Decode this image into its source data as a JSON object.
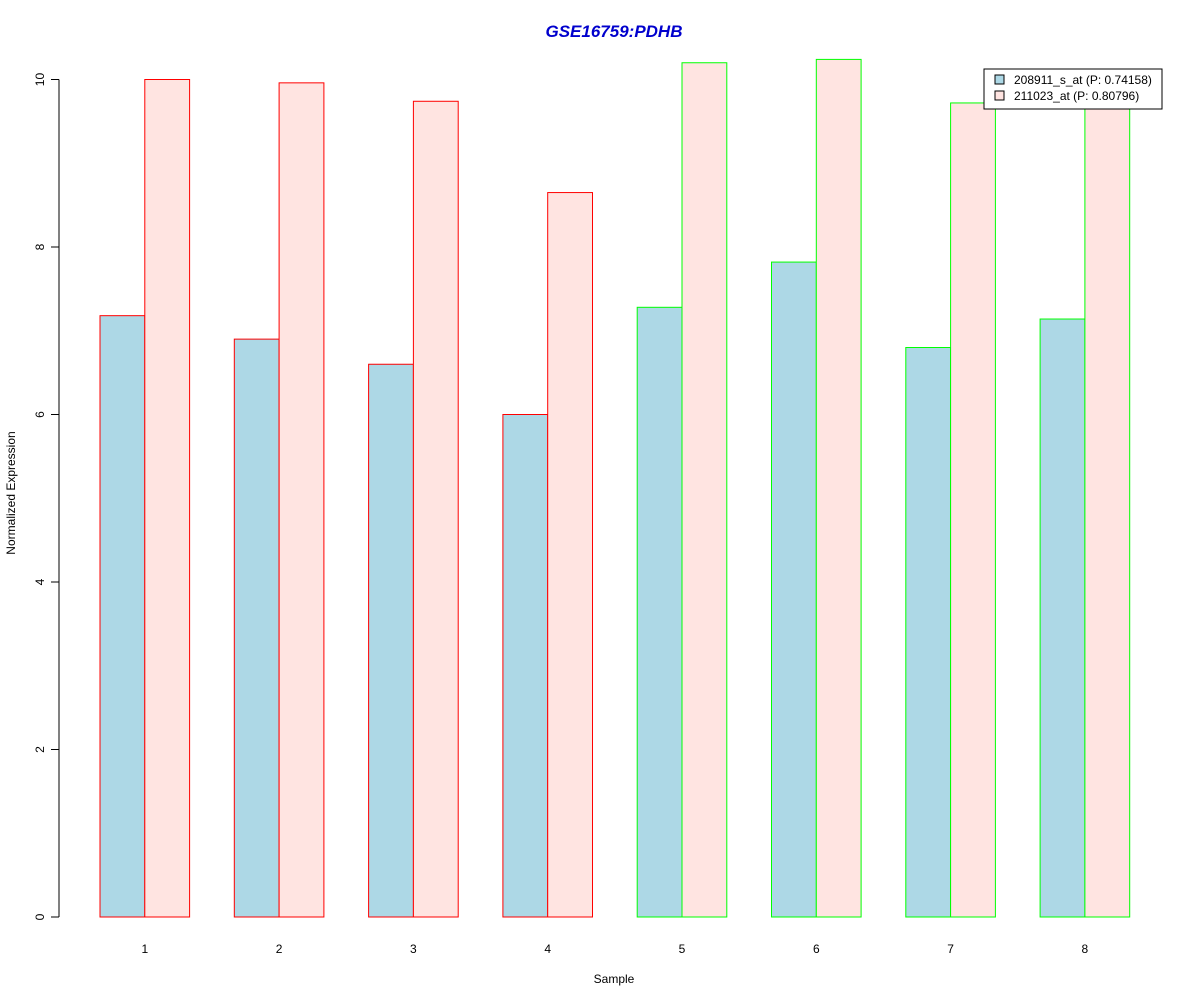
{
  "chart_data": {
    "type": "bar",
    "title": "GSE16759:PDHB",
    "xlabel": "Sample",
    "ylabel": "Normalized Expression",
    "categories": [
      "1",
      "2",
      "3",
      "4",
      "5",
      "6",
      "7",
      "8"
    ],
    "yticks": [
      "0",
      "2",
      "4",
      "6",
      "8",
      "10"
    ],
    "ylim": [
      0,
      10.2
    ],
    "series": [
      {
        "name": "208911_s_at (P: 0.74158)",
        "fill": "#add8e6",
        "values": [
          7.18,
          6.9,
          6.6,
          6.0,
          7.28,
          7.82,
          6.8,
          7.14
        ]
      },
      {
        "name": "211023_at (P: 0.80796)",
        "fill": "#ffe4e1",
        "values": [
          10.0,
          9.96,
          9.74,
          8.65,
          10.2,
          10.24,
          9.72,
          9.7
        ]
      }
    ],
    "group_border_colors": [
      "#ff0000",
      "#ff0000",
      "#ff0000",
      "#ff0000",
      "#00ff00",
      "#00ff00",
      "#00ff00",
      "#00ff00"
    ],
    "legend_position": "top-right",
    "grid": false
  },
  "colors": {
    "title": "#0000cd",
    "group_a_border": "#ff0000",
    "group_b_border": "#00ff00"
  }
}
